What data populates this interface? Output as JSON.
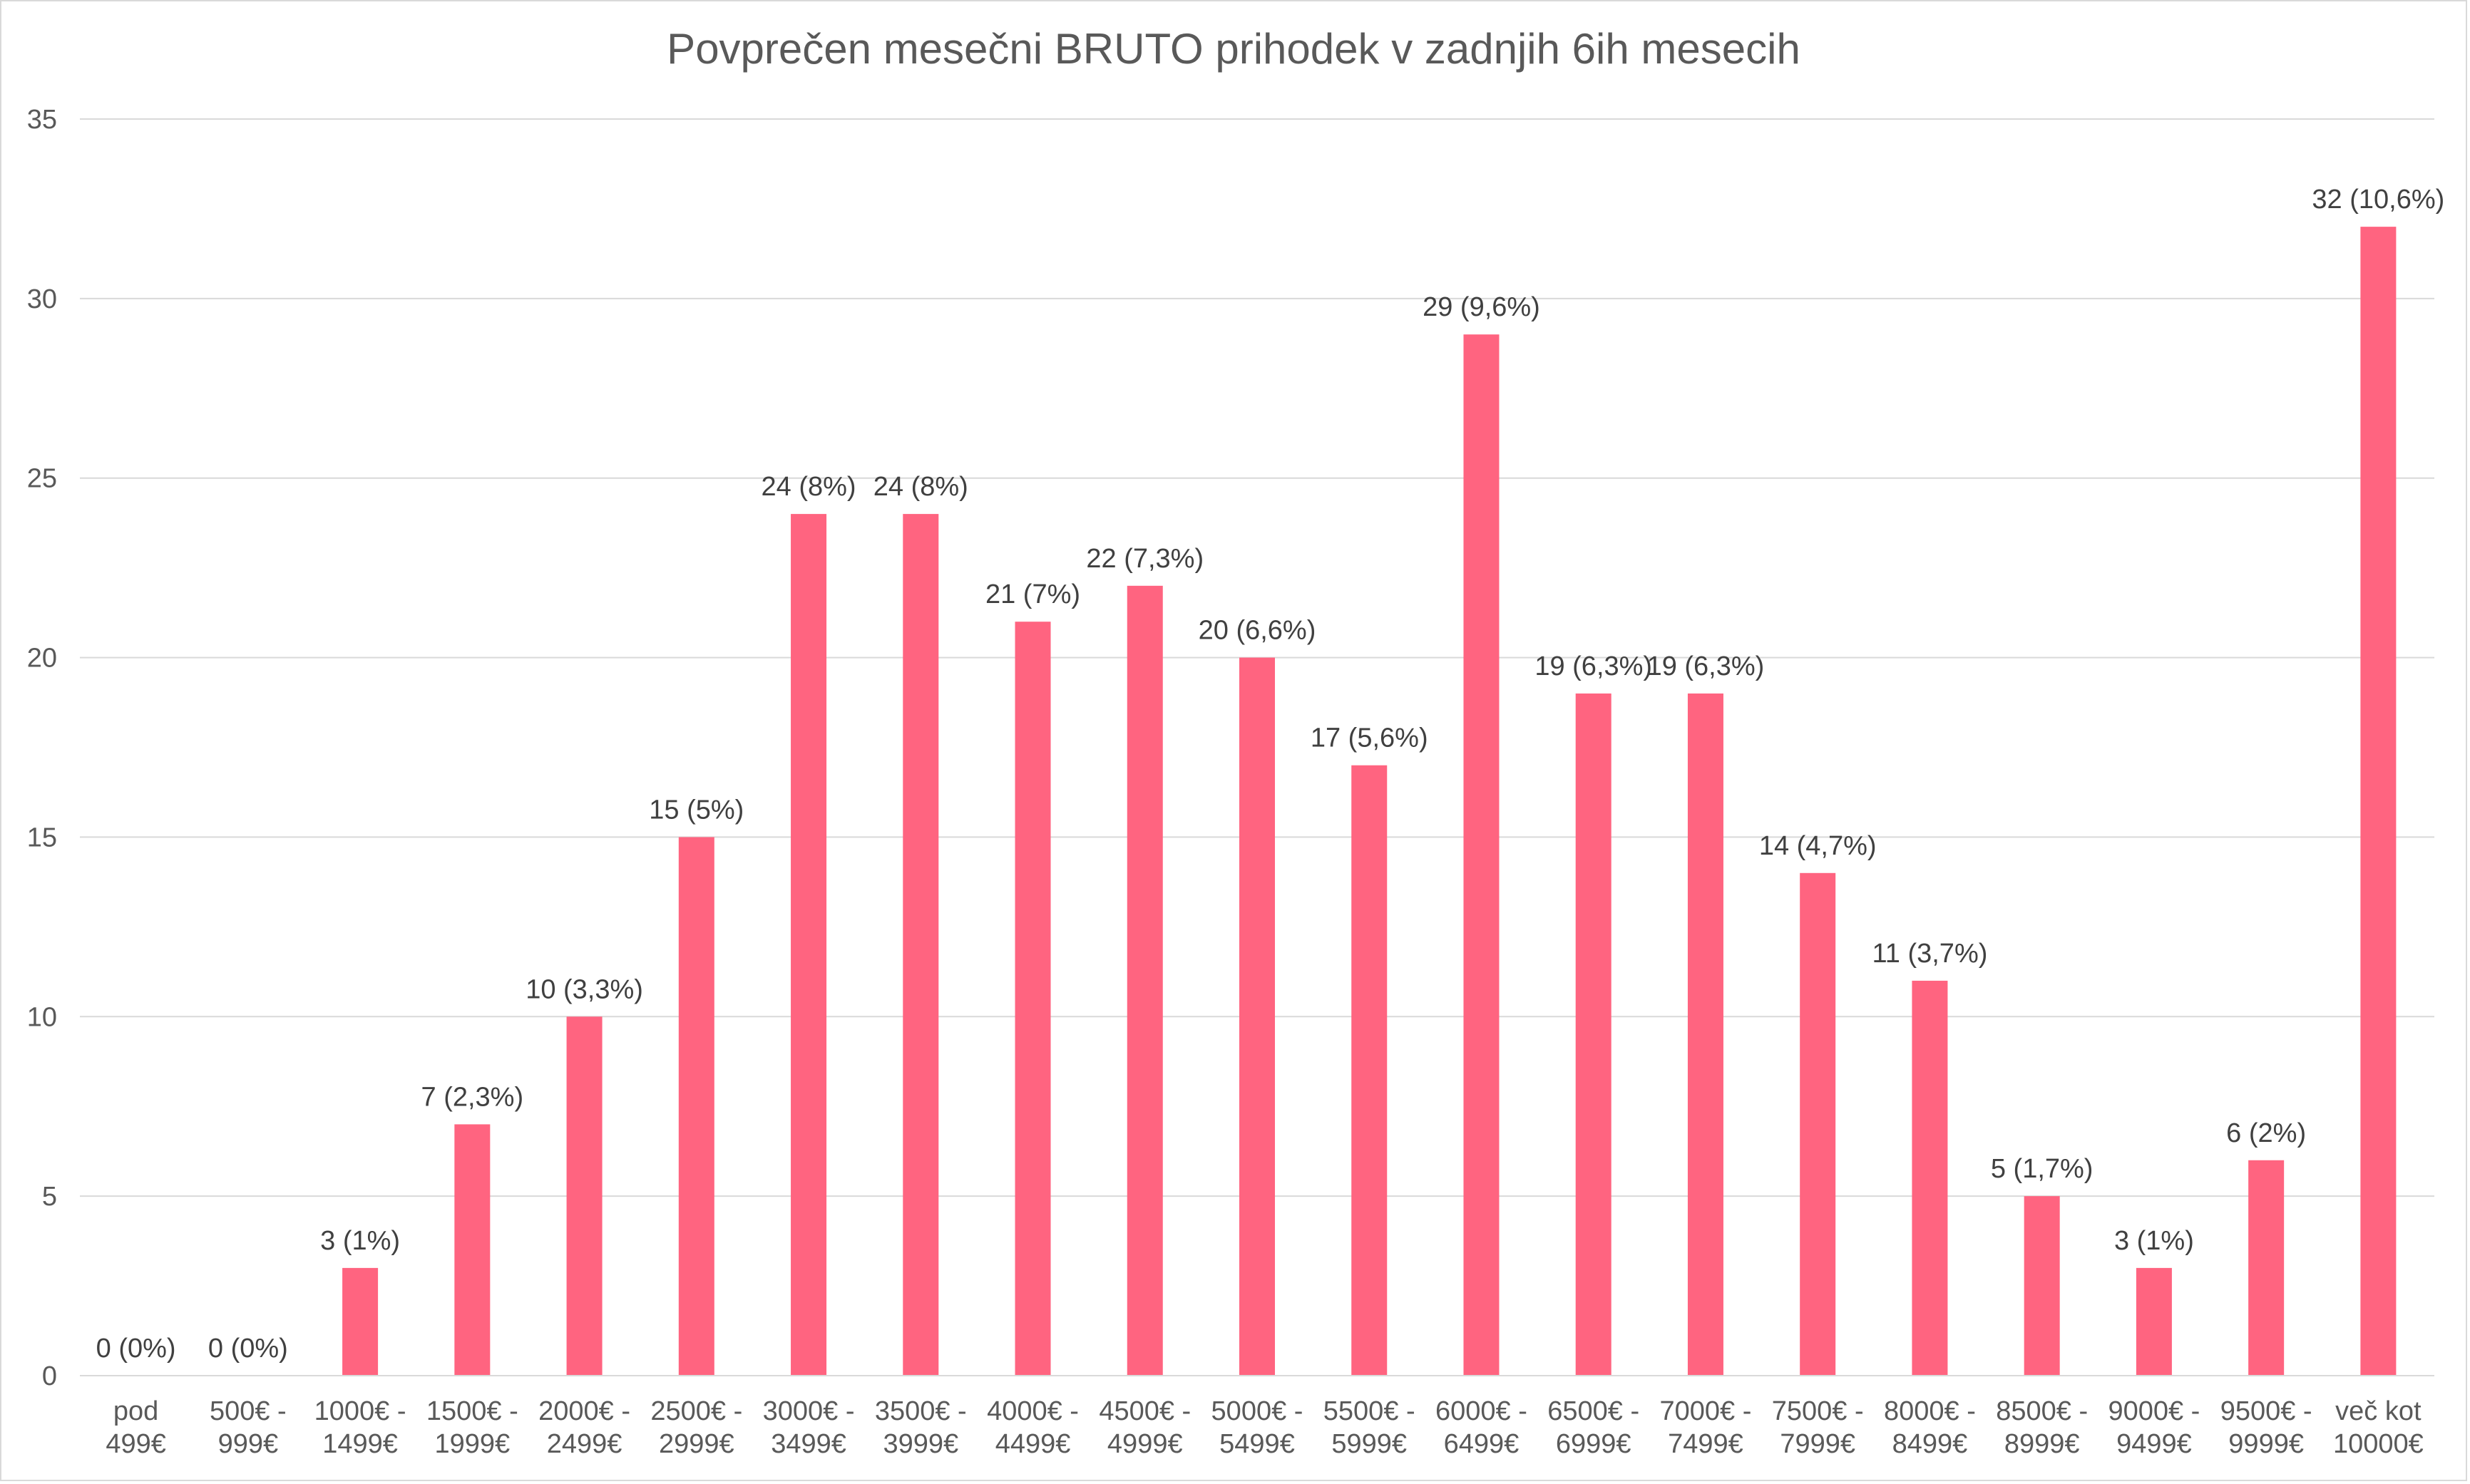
{
  "chart_data": {
    "type": "bar",
    "title": "Povprečen mesečni BRUTO prihodek v zadnjih 6ih mesecih",
    "xlabel": "",
    "ylabel": "",
    "ylim": [
      0,
      35
    ],
    "yticks": [
      "0",
      "5",
      "10",
      "15",
      "20",
      "25",
      "30",
      "35"
    ],
    "grid": true,
    "legend": "none",
    "bar_color": "#ff6480",
    "categories": [
      [
        "pod",
        "499€"
      ],
      [
        "500€ -",
        "999€"
      ],
      [
        "1000€ -",
        "1499€"
      ],
      [
        "1500€ -",
        "1999€"
      ],
      [
        "2000€ -",
        "2499€"
      ],
      [
        "2500€ -",
        "2999€"
      ],
      [
        "3000€ -",
        "3499€"
      ],
      [
        "3500€ -",
        "3999€"
      ],
      [
        "4000€ -",
        "4499€"
      ],
      [
        "4500€ -",
        "4999€"
      ],
      [
        "5000€ -",
        "5499€"
      ],
      [
        "5500€ -",
        "5999€"
      ],
      [
        "6000€ -",
        "6499€"
      ],
      [
        "6500€ -",
        "6999€"
      ],
      [
        "7000€ -",
        "7499€"
      ],
      [
        "7500€ -",
        "7999€"
      ],
      [
        "8000€ -",
        "8499€"
      ],
      [
        "8500€ -",
        "8999€"
      ],
      [
        "9000€ -",
        "9499€"
      ],
      [
        "9500€ -",
        "9999€"
      ],
      [
        "več kot",
        "10000€"
      ]
    ],
    "values": [
      0,
      0,
      3,
      7,
      10,
      15,
      24,
      24,
      21,
      22,
      20,
      17,
      29,
      19,
      19,
      14,
      11,
      5,
      3,
      6,
      32
    ],
    "data_labels": [
      "0 (0%)",
      "0 (0%)",
      "3 (1%)",
      "7 (2,3%)",
      "10 (3,3%)",
      "15 (5%)",
      "24 (8%)",
      "24 (8%)",
      "21 (7%)",
      "22 (7,3%)",
      "20 (6,6%)",
      "17 (5,6%)",
      "29 (9,6%)",
      "19 (6,3%)",
      "19 (6,3%)",
      "14 (4,7%)",
      "11 (3,7%)",
      "5 (1,7%)",
      "3 (1%)",
      "6 (2%)",
      "32 (10,6%)"
    ]
  }
}
